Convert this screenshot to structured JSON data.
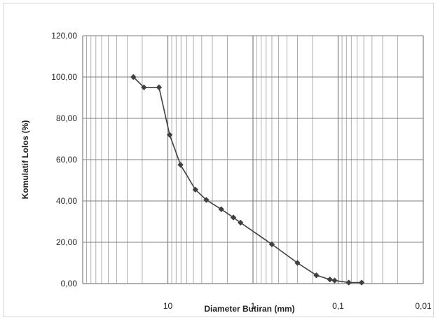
{
  "chart_data": {
    "type": "line",
    "title": "",
    "xlabel": "Diameter Butiran (mm)",
    "ylabel": "Komulatif Lolos (%)",
    "x_scale": "log",
    "x_reversed": true,
    "xlim": [
      100,
      0.01
    ],
    "ylim": [
      0,
      120
    ],
    "x_ticks": [
      {
        "value": 10,
        "label": "10"
      },
      {
        "value": 1,
        "label": "1"
      },
      {
        "value": 0.1,
        "label": "0,1"
      },
      {
        "value": 0.01,
        "label": "0,01"
      }
    ],
    "y_ticks": [
      {
        "value": 0,
        "label": "0,00"
      },
      {
        "value": 20,
        "label": "20,00"
      },
      {
        "value": 40,
        "label": "40,00"
      },
      {
        "value": 60,
        "label": "60,00"
      },
      {
        "value": 80,
        "label": "80,00"
      },
      {
        "value": 100,
        "label": "100,00"
      },
      {
        "value": 120,
        "label": "120,00"
      }
    ],
    "grid": true,
    "legend": "none",
    "series": [
      {
        "color": "#404040",
        "marker": "diamond",
        "x": [
          25.4,
          19.1,
          12.7,
          9.52,
          7.1,
          4.75,
          3.53,
          2.36,
          1.7,
          1.4,
          0.6,
          0.3,
          0.18,
          0.125,
          0.11,
          0.075,
          0.053
        ],
        "y": [
          100,
          95,
          95,
          72,
          57.5,
          45.5,
          40.5,
          36,
          32,
          29.5,
          19,
          10,
          4,
          2,
          1.5,
          0.5,
          0.5
        ]
      }
    ]
  }
}
